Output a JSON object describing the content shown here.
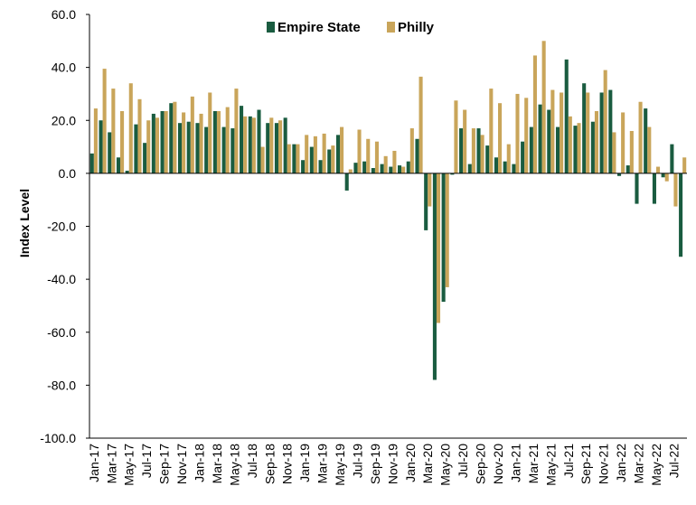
{
  "chart_data": {
    "type": "bar",
    "ylabel": "Index Level",
    "ylim": [
      -100,
      60
    ],
    "yticks": [
      "60.0",
      "40.0",
      "20.0",
      "0.0",
      "-20.0",
      "-40.0",
      "-60.0",
      "-80.0",
      "-100.0"
    ],
    "ytick_values": [
      60,
      40,
      20,
      0,
      -20,
      -40,
      -60,
      -80,
      -100
    ],
    "legend_position": "top-center",
    "grid": false,
    "x_tick_labels": [
      "Jan-17",
      "Mar-17",
      "May-17",
      "Jul-17",
      "Sep-17",
      "Nov-17",
      "Jan-18",
      "Mar-18",
      "May-18",
      "Jul-18",
      "Sep-18",
      "Nov-18",
      "Jan-19",
      "Mar-19",
      "May-19",
      "Jul-19",
      "Sep-19",
      "Nov-19",
      "Jan-20",
      "Mar-20",
      "May-20",
      "Jul-20",
      "Sep-20",
      "Nov-20",
      "Jan-21",
      "Mar-21",
      "May-21",
      "Jul-21",
      "Sep-21",
      "Nov-21",
      "Jan-22",
      "Mar-22",
      "May-22",
      "Jul-22"
    ],
    "series": [
      {
        "name": "Empire State",
        "color": "#1a5c40",
        "values": [
          7.5,
          20,
          15.5,
          6,
          1,
          18.5,
          11.5,
          22.5,
          23.5,
          26.5,
          19,
          19.5,
          19,
          17.5,
          23.5,
          17.5,
          17,
          25.5,
          21.5,
          24,
          19,
          19,
          21,
          11,
          5,
          10,
          5,
          9,
          14.5,
          -6.5,
          4,
          4.5,
          2,
          3.5,
          2.5,
          3,
          4.5,
          13,
          -21.5,
          -78,
          -48.5,
          -0.5,
          17,
          3.5,
          17,
          10.5,
          6,
          4.5,
          3.5,
          12,
          17.5,
          26,
          24,
          17.5,
          43,
          18,
          34,
          19.5,
          30.5,
          31.5,
          -1,
          3,
          -11.5,
          24.5,
          -11.5,
          -1.5,
          11,
          -31.5
        ],
        "x_months": [
          "Jan-17",
          "Feb-17",
          "Mar-17",
          "Apr-17",
          "May-17",
          "Jun-17",
          "Jul-17",
          "Aug-17",
          "Sep-17",
          "Oct-17",
          "Nov-17",
          "Dec-17",
          "Jan-18",
          "Feb-18",
          "Mar-18",
          "Apr-18",
          "May-18",
          "Jun-18",
          "Jul-18",
          "Aug-18",
          "Sep-18",
          "Oct-18",
          "Nov-18",
          "Dec-18",
          "Jan-19",
          "Feb-19",
          "Mar-19",
          "Apr-19",
          "May-19",
          "Jun-19",
          "Jul-19",
          "Aug-19",
          "Sep-19",
          "Oct-19",
          "Nov-19",
          "Dec-19",
          "Jan-20",
          "Feb-20",
          "Mar-20",
          "Apr-20",
          "May-20",
          "Jun-20",
          "Jul-20",
          "Aug-20",
          "Sep-20",
          "Oct-20",
          "Nov-20",
          "Dec-20",
          "Jan-21",
          "Feb-21",
          "Mar-21",
          "Apr-21",
          "May-21",
          "Jun-21",
          "Jul-21",
          "Aug-21",
          "Sep-21",
          "Oct-21",
          "Nov-21",
          "Dec-21",
          "Jan-22",
          "Feb-22",
          "Mar-22",
          "Apr-22",
          "May-22",
          "Jun-22",
          "Jul-22",
          "Aug-22"
        ]
      },
      {
        "name": "Philly",
        "color": "#c9a55a",
        "values": [
          24.5,
          39.5,
          32,
          23.5,
          34,
          28,
          20,
          21,
          23.5,
          27,
          23,
          29,
          22.5,
          30.5,
          23.5,
          25,
          32,
          21.5,
          21,
          10,
          21,
          20,
          11,
          11,
          14.5,
          14,
          15,
          10.5,
          17.5,
          1.5,
          16.5,
          13,
          12,
          6.5,
          8.5,
          2.5,
          17,
          36.5,
          -12.5,
          -56.5,
          -43,
          27.5,
          24,
          17,
          14.5,
          32,
          26.5,
          11,
          30,
          28.5,
          44.5,
          50,
          31.5,
          30.5,
          21.5,
          19,
          30.5,
          23.5,
          39,
          15.5,
          23,
          16,
          27,
          17.5,
          2.5,
          -3,
          -12.5,
          6
        ]
      }
    ]
  }
}
